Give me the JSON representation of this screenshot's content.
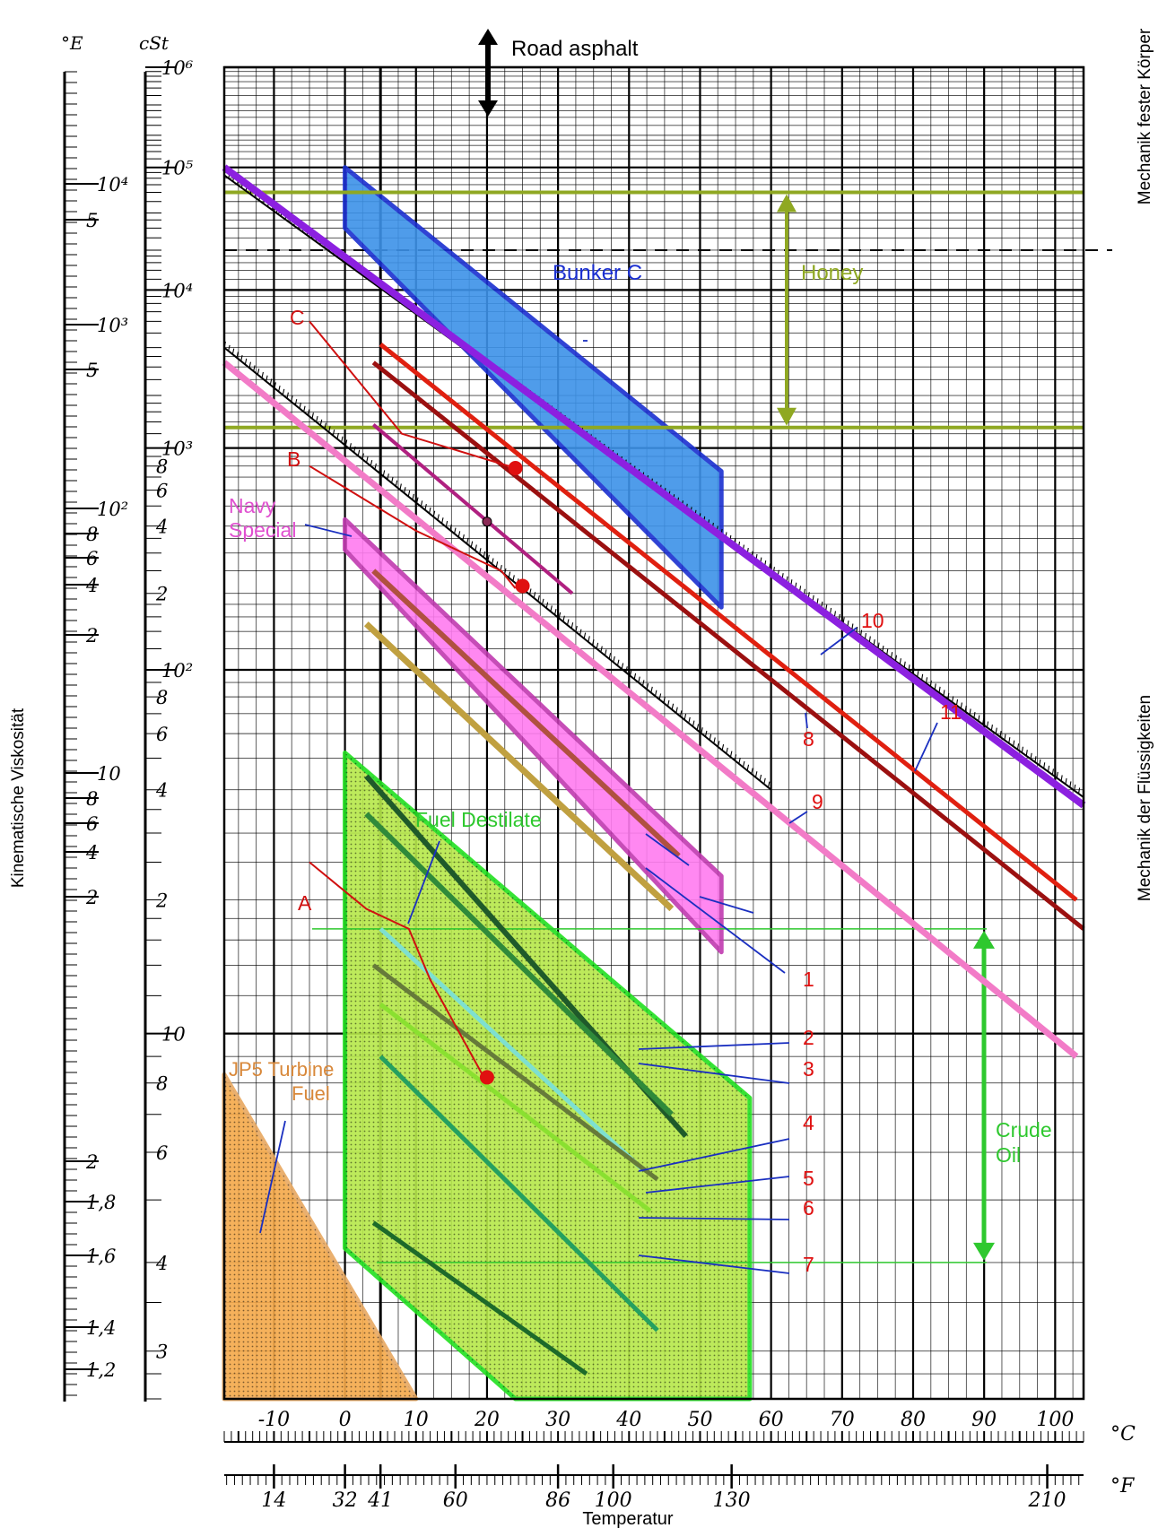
{
  "chart_data": {
    "type": "line",
    "title": "",
    "top_label": "Road asphalt",
    "xlabel": "Temperatur",
    "ylabel": "Kinematische Viskosität",
    "right_label_top": "Mechanik fester Körper",
    "right_label_bottom": "Mechanik der Flüssigkeiten",
    "x_unit_c": "°C",
    "x_unit_f": "°F",
    "y_unit_e": "°E",
    "y_unit_cst": "cSt",
    "x_ticks_c": [
      "-10",
      "0",
      "10",
      "20",
      "30",
      "40",
      "50",
      "60",
      "70",
      "80",
      "90",
      "100"
    ],
    "x_ticks_f": [
      "14",
      "32",
      "41",
      "60",
      "86",
      "100",
      "130",
      "210"
    ],
    "y_ticks_cst": [
      "10⁶",
      "10⁵",
      "10⁴",
      "10³",
      "8",
      "6",
      "4",
      "2",
      "10²",
      "8",
      "6",
      "4",
      "2",
      "10",
      "8",
      "6",
      "4",
      "3"
    ],
    "y_ticks_e": [
      "10⁴",
      "5",
      "10³",
      "5",
      "10²",
      "8",
      "6",
      "4",
      "2",
      "10",
      "8",
      "6",
      "4",
      "2",
      "2",
      "1,8",
      "1,6",
      "1,4",
      "1,2"
    ],
    "xlim": [
      -17,
      104
    ],
    "ylim_note": "logarithmic ASTM viscosity scale",
    "regions": [
      {
        "name": "Bunker C",
        "color": "#3d92e8",
        "edge": "#1a2fd0",
        "poly": [
          [
            0,
            100000
          ],
          [
            53,
            750
          ],
          [
            53,
            175
          ],
          [
            0,
            30000
          ]
        ]
      },
      {
        "name": "Navy Special",
        "color": "#ff7cf0",
        "edge": "#c03ab0",
        "poly": [
          [
            0,
            430
          ],
          [
            53,
            23
          ],
          [
            53,
            15
          ],
          [
            0,
            310
          ]
        ]
      },
      {
        "name": "Fuel Destilate",
        "color": "#b6e84a",
        "edge": "#22e020",
        "poly": [
          [
            0,
            52
          ],
          [
            57,
            7.5
          ],
          [
            57,
            2.6
          ],
          [
            24,
            2.6
          ],
          [
            0,
            4.2
          ]
        ]
      },
      {
        "name": "JP5 Turbine Fuel",
        "color": "#f5a94a",
        "edge": "#e8a860",
        "poly": [
          [
            -17,
            8.3
          ],
          [
            10,
            2.6
          ],
          [
            -17,
            2.6
          ]
        ]
      }
    ],
    "honey": {
      "label": "Honey",
      "color": "#8fa822",
      "cst_low": 1300,
      "cst_high": 60000
    },
    "crude_oil": {
      "label": "Crude Oil",
      "color": "#2ec82e",
      "cst_low": 4.0,
      "cst_high": 17
    },
    "series": [
      {
        "name": "1",
        "color": "#c0a040",
        "width": 7,
        "x": [
          3,
          46
        ],
        "y": [
          150,
          19
        ]
      },
      {
        "name": "",
        "color": "#b05040",
        "width": 6,
        "x": [
          4,
          47
        ],
        "y": [
          250,
          26
        ]
      },
      {
        "name": "2",
        "color": "#1f5a2a",
        "width": 6,
        "x": [
          3,
          48
        ],
        "y": [
          44,
          6.4
        ]
      },
      {
        "name": "3",
        "color": "#2f8a3a",
        "width": 6,
        "x": [
          3,
          46
        ],
        "y": [
          34,
          7
        ]
      },
      {
        "name": "4",
        "color": "#7ee0d0",
        "width": 5,
        "x": [
          5,
          42
        ],
        "y": [
          17,
          5.6
        ]
      },
      {
        "name": "5",
        "color": "#667a3a",
        "width": 5,
        "x": [
          4,
          44
        ],
        "y": [
          14,
          5.4
        ]
      },
      {
        "name": "6",
        "color": "#8ae030",
        "width": 5,
        "x": [
          5,
          43
        ],
        "y": [
          11.5,
          4.8
        ]
      },
      {
        "name": "7",
        "color": "#25a060",
        "width": 5,
        "x": [
          5,
          44
        ],
        "y": [
          9,
          3.2
        ]
      },
      {
        "name": "",
        "color": "#1d6a2a",
        "width": 5,
        "x": [
          4,
          34
        ],
        "y": [
          4.6,
          2.8
        ]
      },
      {
        "name": "8",
        "color": "#f27bc7",
        "width": 7,
        "x": [
          -17,
          103
        ],
        "y": [
          3200,
          9
        ]
      },
      {
        "name": "9",
        "color": "#9b1010",
        "width": 5,
        "x": [
          4,
          104
        ],
        "y": [
          3200,
          17
        ]
      },
      {
        "name": "10",
        "color": "#e02010",
        "width": 5,
        "x": [
          5,
          103
        ],
        "y": [
          4200,
          20
        ]
      },
      {
        "name": "11",
        "color": "#8c20e0",
        "width": 8,
        "x": [
          -17,
          104
        ],
        "y": [
          100000,
          36
        ]
      },
      {
        "name": "",
        "color": "#b02080",
        "width": 4,
        "x": [
          4,
          32
        ],
        "y": [
          1350,
          200
        ]
      }
    ],
    "sample_curves": [
      {
        "name": "A",
        "color": "#d01010",
        "x": [
          -5,
          3,
          9,
          12,
          20
        ],
        "y": [
          25,
          19,
          17,
          13,
          8
        ]
      },
      {
        "name": "B",
        "color": "#d01010",
        "x": [
          -5,
          10,
          22,
          24
        ],
        "y": [
          800,
          380,
          250,
          210
        ]
      },
      {
        "name": "C",
        "color": "#d01010",
        "x": [
          -5,
          8,
          24
        ],
        "y": [
          6000,
          1200,
          780
        ]
      }
    ],
    "markers": [
      {
        "label": "",
        "x": 24,
        "y": 780,
        "color": "#e01010"
      },
      {
        "label": "",
        "x": 25,
        "y": 215,
        "color": "#e01010"
      },
      {
        "label": "",
        "x": 20,
        "y": 8.2,
        "color": "#e01010"
      },
      {
        "label": "",
        "x": 20,
        "y": 420,
        "color": "#8a2a55"
      }
    ]
  }
}
